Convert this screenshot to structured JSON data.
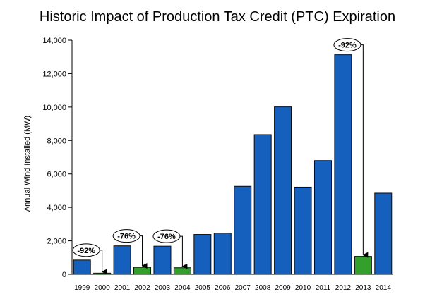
{
  "chart_data": {
    "type": "bar",
    "title": "Historic Impact of Production Tax Credit (PTC) Expiration",
    "ylabel": "Annual Wind Installed (MW)",
    "xlabel": "",
    "ylim": [
      0,
      14000
    ],
    "yticks": [
      0,
      2000,
      4000,
      6000,
      8000,
      10000,
      12000,
      14000
    ],
    "ytick_labels": [
      "0",
      "2,000",
      "4,000",
      "6,000",
      "8,000",
      "10,000",
      "12,000",
      "14,000"
    ],
    "grid": false,
    "categories": [
      "1999",
      "2000",
      "2001",
      "2002",
      "2003",
      "2004",
      "2005",
      "2006",
      "2007",
      "2008",
      "2009",
      "2010",
      "2011",
      "2012",
      "2013",
      "2014"
    ],
    "values": [
      850,
      70,
      1700,
      420,
      1680,
      390,
      2380,
      2460,
      5260,
      8350,
      10010,
      5210,
      6800,
      13130,
      1070,
      4850
    ],
    "colors": {
      "normal": "#1560BD",
      "expiration": "#33A02C",
      "outline": "#0b0b0b"
    },
    "expiration_years": [
      "2000",
      "2002",
      "2004",
      "2013"
    ],
    "annotations": [
      {
        "text": "-92%",
        "from": "1999",
        "to": "2000"
      },
      {
        "text": "-76%",
        "from": "2001",
        "to": "2002"
      },
      {
        "text": "-76%",
        "from": "2003",
        "to": "2004"
      },
      {
        "text": "-92%",
        "from": "2012",
        "to": "2013"
      }
    ]
  }
}
